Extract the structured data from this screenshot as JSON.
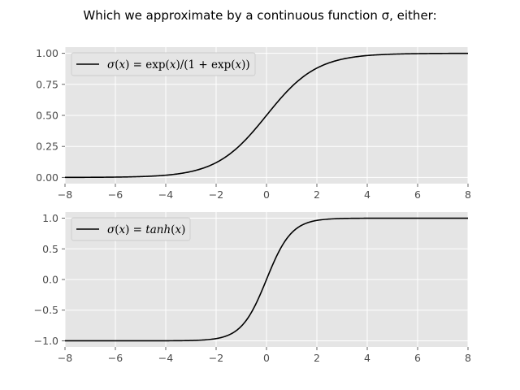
{
  "figure": {
    "suptitle": "Which we approximate by a continuous function σ, either:"
  },
  "chart_data": [
    {
      "type": "line",
      "title": "",
      "xlabel": "",
      "ylabel": "",
      "xlim": [
        -8,
        8
      ],
      "ylim": [
        -0.0499,
        1.0499
      ],
      "xticks": [
        -8,
        -6,
        -4,
        -2,
        0,
        2,
        4,
        6,
        8
      ],
      "xtick_labels": [
        "−8",
        "−6",
        "−4",
        "−2",
        "0",
        "2",
        "4",
        "6",
        "8"
      ],
      "yticks": [
        0.0,
        0.25,
        0.5,
        0.75,
        1.0
      ],
      "ytick_labels": [
        "0.00",
        "0.25",
        "0.50",
        "0.75",
        "1.00"
      ],
      "grid": true,
      "legend_position": "top-left",
      "series": [
        {
          "name": "σ(x) = exp(x)/(1 + exp(x))",
          "color": "#000000",
          "x": [
            -8,
            -7,
            -6,
            -5,
            -4,
            -3.5,
            -3,
            -2.5,
            -2,
            -1.5,
            -1,
            -0.5,
            0,
            0.5,
            1,
            1.5,
            2,
            2.5,
            3,
            3.5,
            4,
            5,
            6,
            7,
            8
          ],
          "y": [
            0.0003,
            0.0009,
            0.0025,
            0.0067,
            0.018,
            0.029,
            0.047,
            0.076,
            0.119,
            0.182,
            0.269,
            0.378,
            0.5,
            0.622,
            0.731,
            0.818,
            0.881,
            0.924,
            0.953,
            0.971,
            0.982,
            0.993,
            0.998,
            0.999,
            1.0
          ]
        }
      ]
    },
    {
      "type": "line",
      "title": "",
      "xlabel": "",
      "ylabel": "",
      "xlim": [
        -8,
        8
      ],
      "ylim": [
        -1.1,
        1.1
      ],
      "xticks": [
        -8,
        -6,
        -4,
        -2,
        0,
        2,
        4,
        6,
        8
      ],
      "xtick_labels": [
        "−8",
        "−6",
        "−4",
        "−2",
        "0",
        "2",
        "4",
        "6",
        "8"
      ],
      "yticks": [
        -1.0,
        -0.5,
        0.0,
        0.5,
        1.0
      ],
      "ytick_labels": [
        "−1.0",
        "−0.5",
        "0.0",
        "0.5",
        "1.0"
      ],
      "grid": true,
      "legend_position": "top-left",
      "series": [
        {
          "name": "σ(x) = tanh(x)",
          "color": "#000000",
          "x": [
            -8,
            -4,
            -3,
            -2.5,
            -2,
            -1.75,
            -1.5,
            -1.25,
            -1,
            -0.75,
            -0.5,
            -0.25,
            0,
            0.25,
            0.5,
            0.75,
            1,
            1.25,
            1.5,
            1.75,
            2,
            2.5,
            3,
            4,
            8
          ],
          "y": [
            -1.0,
            -0.999,
            -0.995,
            -0.987,
            -0.964,
            -0.941,
            -0.905,
            -0.848,
            -0.762,
            -0.635,
            -0.462,
            -0.245,
            0.0,
            0.245,
            0.462,
            0.635,
            0.762,
            0.848,
            0.905,
            0.941,
            0.964,
            0.987,
            0.995,
            0.999,
            1.0
          ]
        }
      ]
    }
  ]
}
